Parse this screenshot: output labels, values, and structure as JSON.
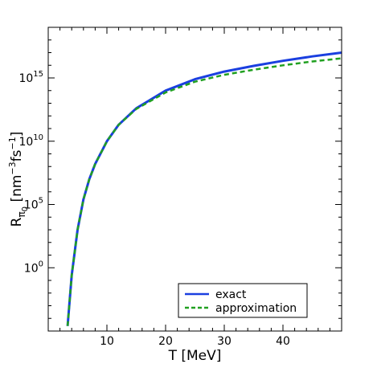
{
  "chart_data": {
    "type": "line",
    "title": "",
    "xlabel": "T [MeV]",
    "ylabel": {
      "main": "R",
      "sub": "π",
      "subsub": "0",
      "unit_open": " [nm",
      "unit_exp1": "−3",
      "unit_mid": "fs",
      "unit_exp2": "−1",
      "unit_close": "]"
    },
    "xlim": [
      0,
      50
    ],
    "ylim_log10": [
      -5,
      19
    ],
    "y_scale": "log",
    "x_ticks": [
      10,
      20,
      30,
      40
    ],
    "x_minor_step": 2,
    "y_ticks_major": [
      {
        "value": 0,
        "label_base": "10",
        "label_exp": "0"
      },
      {
        "value": 5,
        "label_base": "10",
        "label_exp": "5"
      },
      {
        "value": 10,
        "label_base": "10",
        "label_exp": "10"
      },
      {
        "value": 15,
        "label_base": "10",
        "label_exp": "15"
      }
    ],
    "y_minor_step": 1,
    "grid": false,
    "legend": {
      "position": "lower-right",
      "entries": [
        "exact",
        "approximation"
      ]
    },
    "series": [
      {
        "name": "exact",
        "color": "#1a3fe0",
        "style": "solid",
        "x": [
          3.3,
          4,
          5,
          6,
          7,
          8,
          10,
          12,
          15,
          20,
          25,
          30,
          35,
          40,
          45,
          50
        ],
        "log10_y": [
          -4.6,
          -0.6,
          3.0,
          5.4,
          7.0,
          8.2,
          10.0,
          11.3,
          12.6,
          14.0,
          14.9,
          15.5,
          15.95,
          16.35,
          16.7,
          17.0
        ]
      },
      {
        "name": "approximation",
        "color": "#20a020",
        "style": "dashed",
        "x": [
          3.3,
          4,
          5,
          6,
          7,
          8,
          10,
          12,
          15,
          20,
          25,
          30,
          35,
          40,
          45,
          50
        ],
        "log10_y": [
          -4.6,
          -0.6,
          3.0,
          5.4,
          7.0,
          8.2,
          10.0,
          11.3,
          12.55,
          13.85,
          14.7,
          15.25,
          15.65,
          16.0,
          16.3,
          16.55
        ]
      }
    ]
  }
}
